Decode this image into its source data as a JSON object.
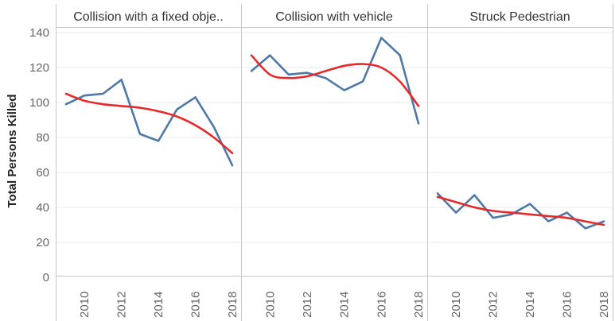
{
  "chart_data": {
    "type": "line",
    "ylabel": "Total Persons Killed",
    "ylim": [
      0,
      145
    ],
    "yticks": [
      0,
      20,
      40,
      60,
      80,
      100,
      120,
      140
    ],
    "x": [
      2009,
      2010,
      2011,
      2012,
      2013,
      2014,
      2015,
      2016,
      2017,
      2018
    ],
    "xticks": [
      "2010",
      "2012",
      "2014",
      "2016",
      "2018"
    ],
    "grid": true,
    "colors": {
      "actual": "#4e79a7",
      "trend": "#e8292b",
      "gridline": "#e9e9e9",
      "border": "#c8c8c8"
    },
    "panels": [
      {
        "title": "Collision with a fixed obje..",
        "actual": [
          99,
          104,
          105,
          113,
          82,
          78,
          96,
          103,
          86,
          64
        ],
        "trend": [
          105,
          101,
          99,
          98,
          97,
          95,
          92,
          87,
          80,
          71
        ]
      },
      {
        "title": "Collision with vehicle",
        "actual": [
          118,
          127,
          116,
          117,
          114,
          107,
          112,
          137,
          127,
          88
        ],
        "trend": [
          127,
          116,
          114,
          115,
          118,
          121,
          122,
          120,
          112,
          98
        ]
      },
      {
        "title": "Struck Pedestrian",
        "actual": [
          48,
          37,
          47,
          34,
          36,
          42,
          32,
          37,
          28,
          32
        ],
        "trend": [
          46,
          43,
          40,
          38,
          37,
          36,
          35,
          34,
          32,
          30
        ]
      }
    ]
  }
}
